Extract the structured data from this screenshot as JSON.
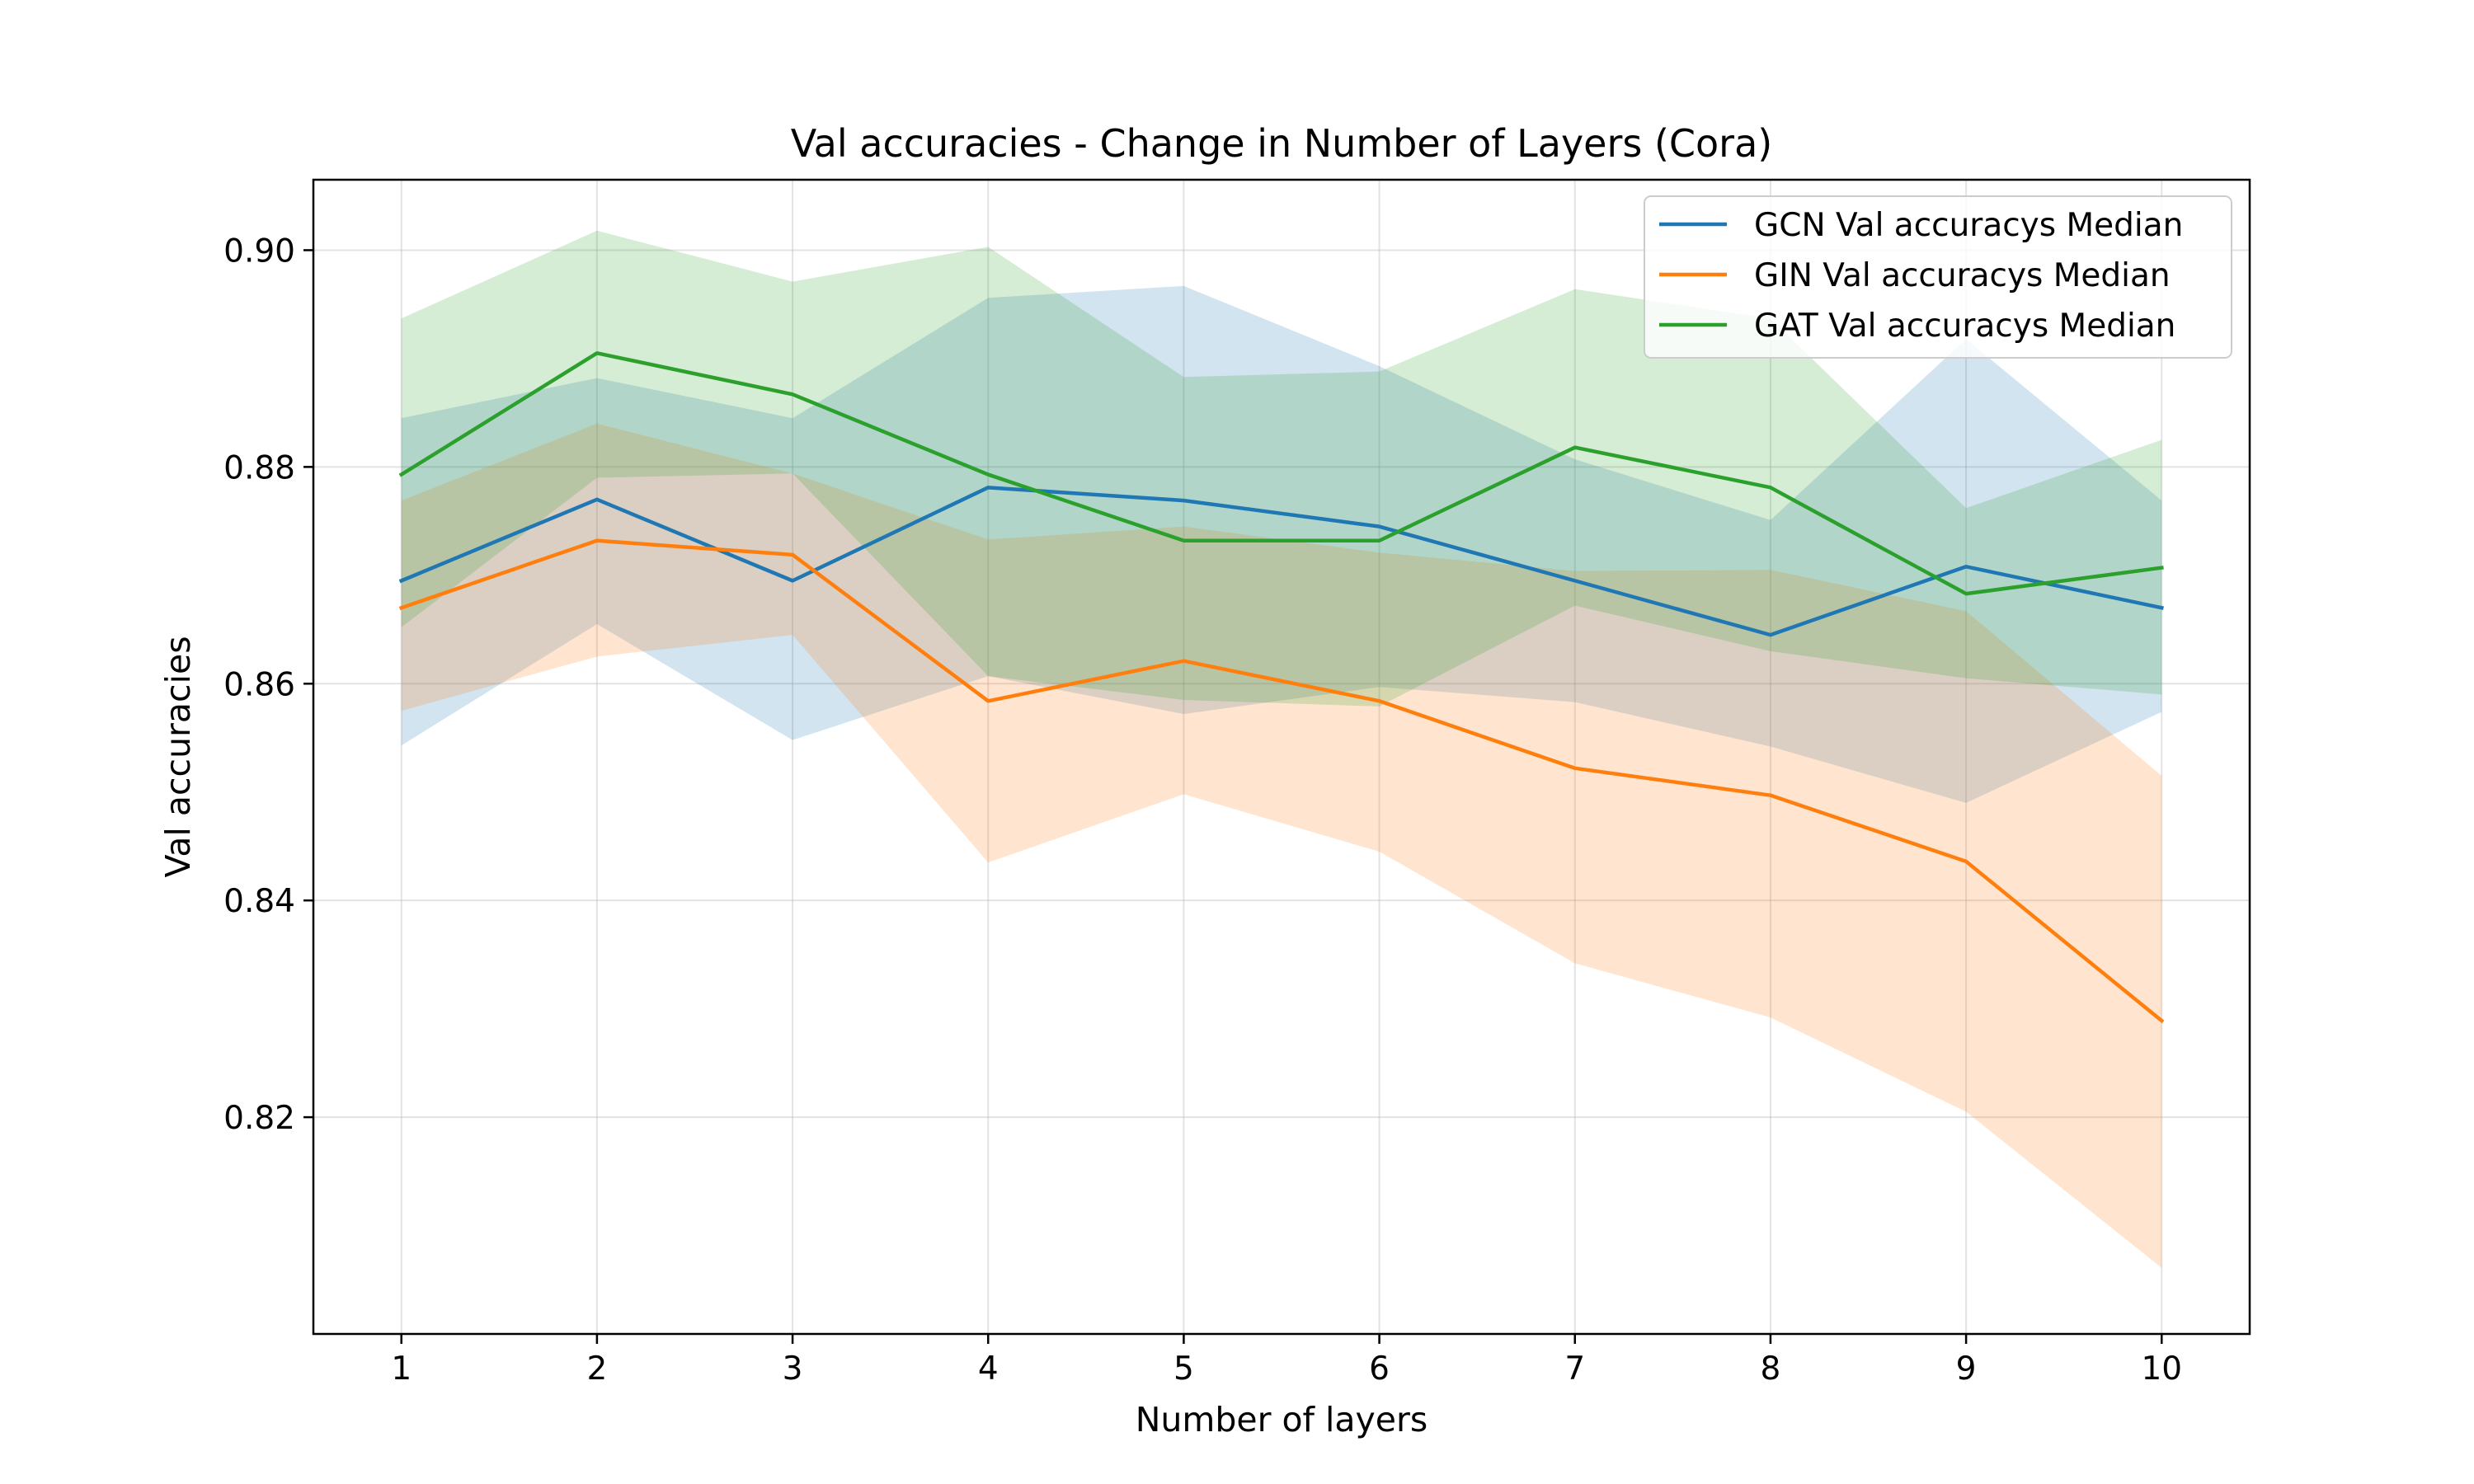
{
  "chart_data": {
    "type": "line",
    "title": "Val accuracies - Change in Number of Layers (Cora)",
    "xlabel": "Number of layers",
    "ylabel": "Val accuracies",
    "xlim": [
      0.55,
      10.45
    ],
    "ylim": [
      0.8,
      0.9065
    ],
    "x_ticks": [
      1,
      2,
      3,
      4,
      5,
      6,
      7,
      8,
      9,
      10
    ],
    "y_ticks": [
      0.82,
      0.84,
      0.86,
      0.88,
      0.9
    ],
    "y_tick_labels": [
      "0.82",
      "0.84",
      "0.86",
      "0.88",
      "0.90"
    ],
    "grid": true,
    "legend_position": "top-right",
    "x": [
      1,
      2,
      3,
      4,
      5,
      6,
      7,
      8,
      9,
      10
    ],
    "series": [
      {
        "name": "GCN Val accuracys Median",
        "color": "#1f77b4",
        "values": [
          0.8695,
          0.877,
          0.8695,
          0.8781,
          0.8769,
          0.8745,
          0.8695,
          0.8645,
          0.8708,
          0.867
        ],
        "band_upper": [
          0.8845,
          0.8882,
          0.8845,
          0.8956,
          0.8967,
          0.8893,
          0.8807,
          0.8751,
          0.8918,
          0.8769
        ],
        "band_lower": [
          0.8543,
          0.8655,
          0.8548,
          0.8607,
          0.8572,
          0.8597,
          0.8583,
          0.8542,
          0.849,
          0.8574
        ]
      },
      {
        "name": "GIN Val accuracys Median",
        "color": "#ff7f0e",
        "values": [
          0.867,
          0.8732,
          0.8719,
          0.8584,
          0.8621,
          0.8584,
          0.8522,
          0.8497,
          0.8436,
          0.8289
        ],
        "band_upper": [
          0.8769,
          0.884,
          0.8794,
          0.8733,
          0.8745,
          0.8721,
          0.8704,
          0.8705,
          0.8667,
          0.8515
        ],
        "band_lower": [
          0.8575,
          0.8625,
          0.8645,
          0.8435,
          0.8498,
          0.8445,
          0.8342,
          0.8292,
          0.8205,
          0.8061
        ]
      },
      {
        "name": "GAT Val accuracys Median",
        "color": "#2ca02c",
        "values": [
          0.8793,
          0.8905,
          0.8867,
          0.8793,
          0.8732,
          0.8732,
          0.8818,
          0.8781,
          0.8683,
          0.8707
        ],
        "band_upper": [
          0.8937,
          0.9018,
          0.8971,
          0.9003,
          0.8883,
          0.8888,
          0.8964,
          0.8937,
          0.8762,
          0.8825
        ],
        "band_lower": [
          0.8652,
          0.879,
          0.8794,
          0.8607,
          0.8585,
          0.8579,
          0.8672,
          0.863,
          0.8605,
          0.859
        ]
      }
    ]
  }
}
